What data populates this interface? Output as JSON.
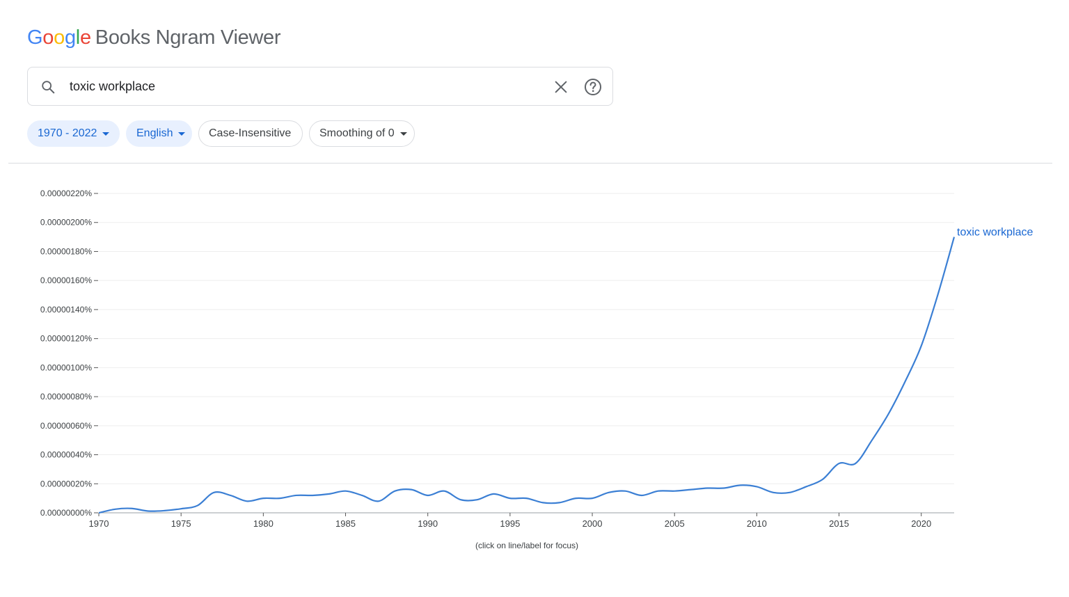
{
  "header": {
    "logo_letters": [
      "G",
      "o",
      "o",
      "g",
      "l",
      "e"
    ],
    "logo_colors": [
      "#4285F4",
      "#EA4335",
      "#FBBC05",
      "#4285F4",
      "#34A853",
      "#EA4335"
    ],
    "product_name": "Books Ngram Viewer"
  },
  "search": {
    "value": "toxic workplace",
    "icons": [
      "search-icon",
      "close-icon",
      "help-icon"
    ]
  },
  "filters": {
    "year_range": "1970 - 2022",
    "language": "English",
    "case": "Case-Insensitive",
    "smoothing": "Smoothing of 0"
  },
  "colors": {
    "accent": "#1967d2",
    "series": "#3b7fd4",
    "chip_active_bg": "#e8f0fe"
  },
  "chart_data": {
    "type": "line",
    "x_ticks": [
      "1970",
      "1975",
      "1980",
      "1985",
      "1990",
      "1995",
      "2000",
      "2005",
      "2010",
      "2015",
      "2020"
    ],
    "y_ticks": [
      "0.00000000%",
      "0.00000020%",
      "0.00000040%",
      "0.00000060%",
      "0.00000080%",
      "0.00000100%",
      "0.00000120%",
      "0.00000140%",
      "0.00000160%",
      "0.00000180%",
      "0.00000200%",
      "0.00000220%"
    ],
    "xlim": [
      1970,
      2022
    ],
    "ylim": [
      0,
      2.2e-06
    ],
    "grid": true,
    "series": [
      {
        "name": "toxic workplace",
        "x": [
          1970,
          1971,
          1972,
          1973,
          1974,
          1975,
          1976,
          1977,
          1978,
          1979,
          1980,
          1981,
          1982,
          1983,
          1984,
          1985,
          1986,
          1987,
          1988,
          1989,
          1990,
          1991,
          1992,
          1993,
          1994,
          1995,
          1996,
          1997,
          1998,
          1999,
          2000,
          2001,
          2002,
          2003,
          2004,
          2005,
          2006,
          2007,
          2008,
          2009,
          2010,
          2011,
          2012,
          2013,
          2014,
          2015,
          2016,
          2017,
          2018,
          2019,
          2020,
          2021,
          2022
        ],
        "y": [
          0.0,
          2.5e-08,
          3e-08,
          1.2e-08,
          1.5e-08,
          2.8e-08,
          5e-08,
          1.4e-07,
          1.2e-07,
          8e-08,
          1e-07,
          1e-07,
          1.2e-07,
          1.2e-07,
          1.3e-07,
          1.5e-07,
          1.2e-07,
          8e-08,
          1.5e-07,
          1.6e-07,
          1.2e-07,
          1.5e-07,
          9e-08,
          9e-08,
          1.3e-07,
          1e-07,
          1e-07,
          7e-08,
          7e-08,
          1e-07,
          1e-07,
          1.4e-07,
          1.5e-07,
          1.2e-07,
          1.5e-07,
          1.5e-07,
          1.6e-07,
          1.7e-07,
          1.7e-07,
          1.9e-07,
          1.8e-07,
          1.4e-07,
          1.4e-07,
          1.8e-07,
          2.3e-07,
          3.4e-07,
          3.4e-07,
          5e-07,
          6.8e-07,
          9e-07,
          1.15e-06,
          1.5e-06,
          1.9e-06
        ]
      }
    ],
    "caption": "(click on line/label for focus)"
  }
}
